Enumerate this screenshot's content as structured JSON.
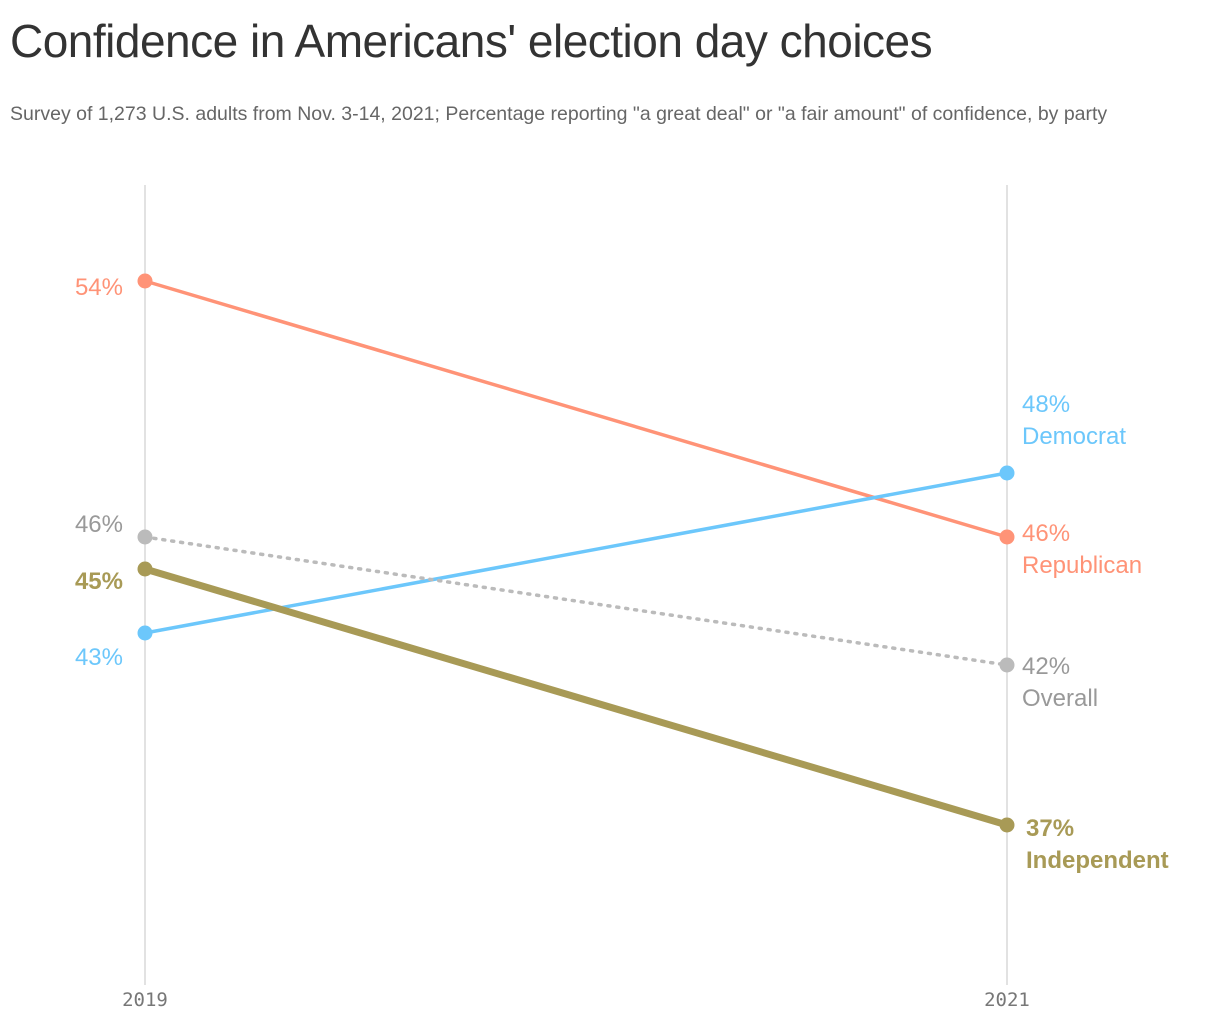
{
  "chart_data": {
    "type": "line",
    "title": "Confidence in Americans' election day choices",
    "subtitle": "Survey of 1,273 U.S. adults from Nov. 3-14, 2021; Percentage reporting \"a great deal\" or \"a fair amount\" of confidence, by party",
    "categories": [
      "2019",
      "2021"
    ],
    "ylim": [
      32,
      57
    ],
    "grid": false,
    "legend": "direct labels at line ends",
    "series": [
      {
        "name": "Republican",
        "values": [
          54,
          46
        ],
        "color": "#ff9377",
        "style": "solid",
        "labels": [
          "54%",
          "46%"
        ]
      },
      {
        "name": "Democrat",
        "values": [
          43,
          48
        ],
        "color": "#6cc7fb",
        "style": "solid",
        "labels": [
          "43%",
          "48%"
        ]
      },
      {
        "name": "Overall",
        "values": [
          46,
          42
        ],
        "color": "#bbbbbb",
        "text_color": "#999999",
        "style": "dotted",
        "labels": [
          "46%",
          "42%"
        ]
      },
      {
        "name": "Independent",
        "values": [
          45,
          37
        ],
        "color": "#a89a56",
        "style": "bold",
        "labels": [
          "45%",
          "37%"
        ]
      }
    ]
  }
}
